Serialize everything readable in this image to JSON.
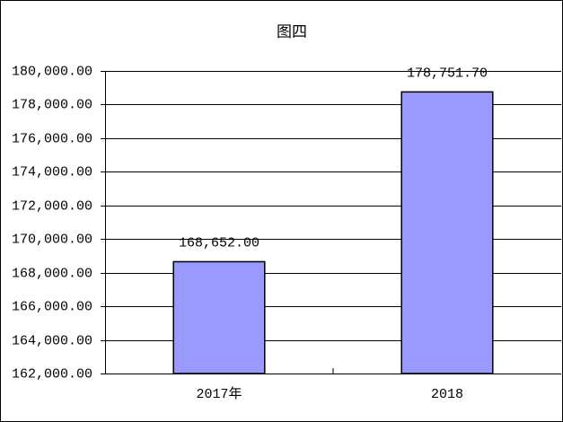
{
  "chart_data": {
    "type": "bar",
    "title": "图四",
    "categories": [
      "2017年",
      "2018"
    ],
    "values": [
      168652,
      178751.7
    ],
    "value_labels": [
      "168,652.00",
      "178,751.70"
    ],
    "color": "#9999ff",
    "ylim": [
      162000,
      180000
    ],
    "yticks": [
      {
        "value": 162000,
        "label": "162,000.00"
      },
      {
        "value": 164000,
        "label": "164,000.00"
      },
      {
        "value": 166000,
        "label": "166,000.00"
      },
      {
        "value": 168000,
        "label": "168,000.00"
      },
      {
        "value": 170000,
        "label": "170,000.00"
      },
      {
        "value": 172000,
        "label": "172,000.00"
      },
      {
        "value": 174000,
        "label": "174,000.00"
      },
      {
        "value": 176000,
        "label": "176,000.00"
      },
      {
        "value": 178000,
        "label": "178,000.00"
      },
      {
        "value": 180000,
        "label": "180,000.00"
      }
    ],
    "grid": true
  }
}
